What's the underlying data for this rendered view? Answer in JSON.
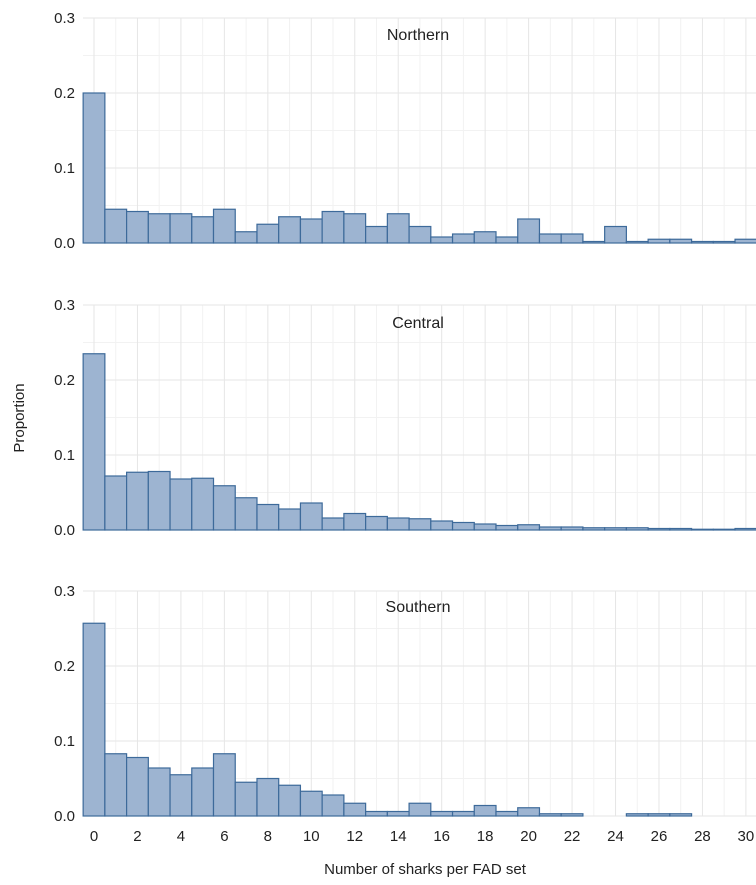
{
  "chart_data": {
    "type": "bar",
    "xlabel": "Number of sharks per FAD set",
    "ylabel": "Proportion",
    "x_ticks": [
      "0",
      "2",
      "4",
      "6",
      "8",
      "10",
      "12",
      "14",
      "16",
      "18",
      "20",
      "22",
      "24",
      "26",
      "28",
      "30"
    ],
    "y_ticks": [
      "0.0",
      "0.1",
      "0.2",
      "0.3"
    ],
    "xlim": [
      -0.6,
      30.1
    ],
    "ylim": [
      0,
      0.3
    ],
    "grid": true,
    "color": "#9db4d1",
    "edge_color": "#3d6a9a",
    "panels": [
      {
        "title": "Northern",
        "x": [
          0,
          1,
          2,
          3,
          4,
          5,
          6,
          7,
          8,
          9,
          10,
          11,
          12,
          13,
          14,
          15,
          16,
          17,
          18,
          19,
          20,
          21,
          22,
          23,
          24,
          25,
          26,
          27,
          28,
          29,
          30
        ],
        "values": [
          0.2,
          0.045,
          0.042,
          0.039,
          0.039,
          0.035,
          0.045,
          0.015,
          0.025,
          0.035,
          0.032,
          0.042,
          0.039,
          0.022,
          0.039,
          0.022,
          0.008,
          0.012,
          0.015,
          0.008,
          0.032,
          0.012,
          0.012,
          0.002,
          0.022,
          0.002,
          0.005,
          0.005,
          0.002,
          0.002,
          0.005
        ]
      },
      {
        "title": "Central",
        "x": [
          0,
          1,
          2,
          3,
          4,
          5,
          6,
          7,
          8,
          9,
          10,
          11,
          12,
          13,
          14,
          15,
          16,
          17,
          18,
          19,
          20,
          21,
          22,
          23,
          24,
          25,
          26,
          27,
          28,
          29,
          30
        ],
        "values": [
          0.235,
          0.072,
          0.077,
          0.078,
          0.068,
          0.069,
          0.059,
          0.043,
          0.034,
          0.028,
          0.036,
          0.016,
          0.022,
          0.018,
          0.016,
          0.015,
          0.012,
          0.01,
          0.008,
          0.006,
          0.007,
          0.004,
          0.004,
          0.003,
          0.003,
          0.003,
          0.002,
          0.002,
          0.001,
          0.001,
          0.002
        ]
      },
      {
        "title": "Southern",
        "x": [
          0,
          1,
          2,
          3,
          4,
          5,
          6,
          7,
          8,
          9,
          10,
          11,
          12,
          13,
          14,
          15,
          16,
          17,
          18,
          19,
          20,
          21,
          22,
          23,
          24,
          25,
          26,
          27,
          28,
          29,
          30
        ],
        "values": [
          0.257,
          0.083,
          0.078,
          0.064,
          0.055,
          0.064,
          0.083,
          0.045,
          0.05,
          0.041,
          0.033,
          0.028,
          0.017,
          0.006,
          0.006,
          0.017,
          0.006,
          0.006,
          0.014,
          0.006,
          0.011,
          0.003,
          0.003,
          0.0,
          0.0,
          0.003,
          0.003,
          0.003,
          0.0,
          0.0,
          0.0
        ]
      }
    ]
  }
}
